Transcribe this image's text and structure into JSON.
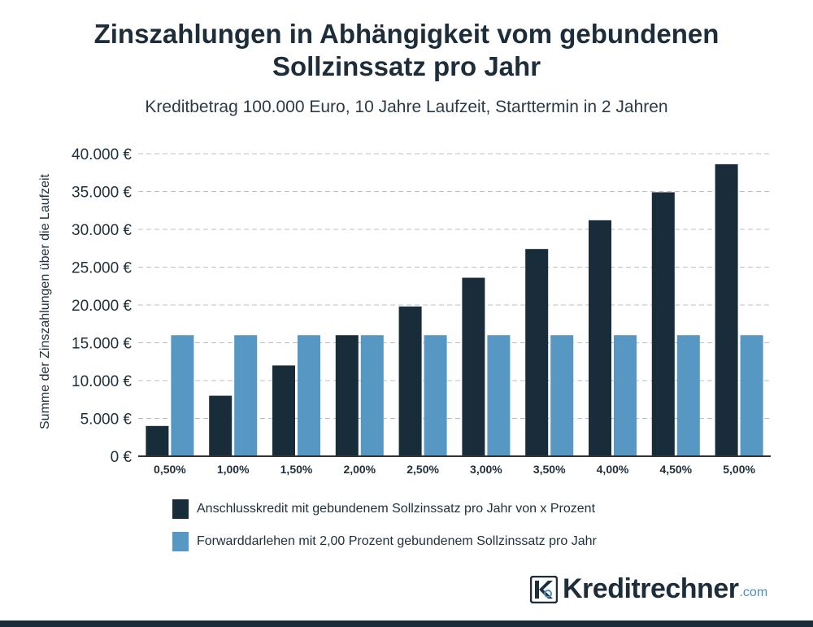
{
  "title": {
    "line1": "Zinszahlungen in Abhängigkeit vom gebundenen",
    "line2": "Sollzinssatz pro Jahr"
  },
  "subtitle": "Kreditbetrag 100.000 Euro, 10 Jahre Laufzeit, Starttermin in 2 Jahren",
  "colors": {
    "series1": "#182c39",
    "series2": "#5697c3",
    "grid": "#bfbfbf",
    "axis": "#333333"
  },
  "chart_data": {
    "type": "bar",
    "title": "Zinszahlungen in Abhängigkeit vom gebundenen Sollzinssatz pro Jahr",
    "subtitle": "Kreditbetrag 100.000 Euro, 10 Jahre Laufzeit, Starttermin in 2 Jahren",
    "xlabel": "",
    "ylabel": "Summe der Zinszahlungen über die Laufzeit",
    "ylim": [
      0,
      40000
    ],
    "yticks": [
      0,
      5000,
      10000,
      15000,
      20000,
      25000,
      30000,
      35000,
      40000
    ],
    "ytick_labels": [
      "0 €",
      "5.000 €",
      "10.000 €",
      "15.000 €",
      "20.000 €",
      "25.000 €",
      "30.000 €",
      "35.000 €",
      "40.000 €"
    ],
    "categories": [
      "0,50%",
      "1,00%",
      "1,50%",
      "2,00%",
      "2,50%",
      "3,00%",
      "3,50%",
      "4,00%",
      "4,50%",
      "5,00%"
    ],
    "series": [
      {
        "name": "Anschlusskredit mit  gebundenem Sollzinssatz pro Jahr von x Prozent",
        "color": "#182c39",
        "values": [
          4000,
          8000,
          12000,
          16000,
          19800,
          23600,
          27400,
          31200,
          34900,
          38600
        ]
      },
      {
        "name": "Forwarddarlehen mit 2,00 Prozent gebundenem Sollzinssatz pro Jahr",
        "color": "#5697c3",
        "values": [
          16000,
          16000,
          16000,
          16000,
          16000,
          16000,
          16000,
          16000,
          16000,
          16000
        ]
      }
    ],
    "grid": true,
    "legend_position": "bottom"
  },
  "logo": {
    "name": "Kreditrechner",
    "domain": ".com"
  }
}
